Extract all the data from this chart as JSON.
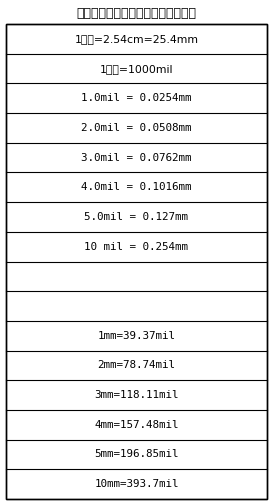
{
  "title": "常见单位换算：（有些小数省略了）",
  "rows": [
    "1英寸=2.54cm=25.4mm",
    "1英寸=1000mil",
    "1.0mil = 0.0254mm",
    "2.0mil = 0.0508mm",
    "3.0mil = 0.0762mm",
    "4.0mil = 0.1016mm",
    "5.0mil = 0.127mm",
    "10 mil = 0.254mm",
    "",
    "",
    "1mm=39.37mil",
    "2mm=78.74mil",
    "3mm=118.11mil",
    "4mm=157.48mil",
    "5mm=196.85mil",
    "10mm=393.7mil"
  ],
  "bg_color": "#ffffff",
  "border_color": "#000000",
  "text_color": "#000000",
  "title_color": "#000000",
  "fig_width": 2.73,
  "fig_height": 5.03,
  "dpi": 100,
  "title_fontsize": 9.0,
  "row_fontsize": 7.8
}
